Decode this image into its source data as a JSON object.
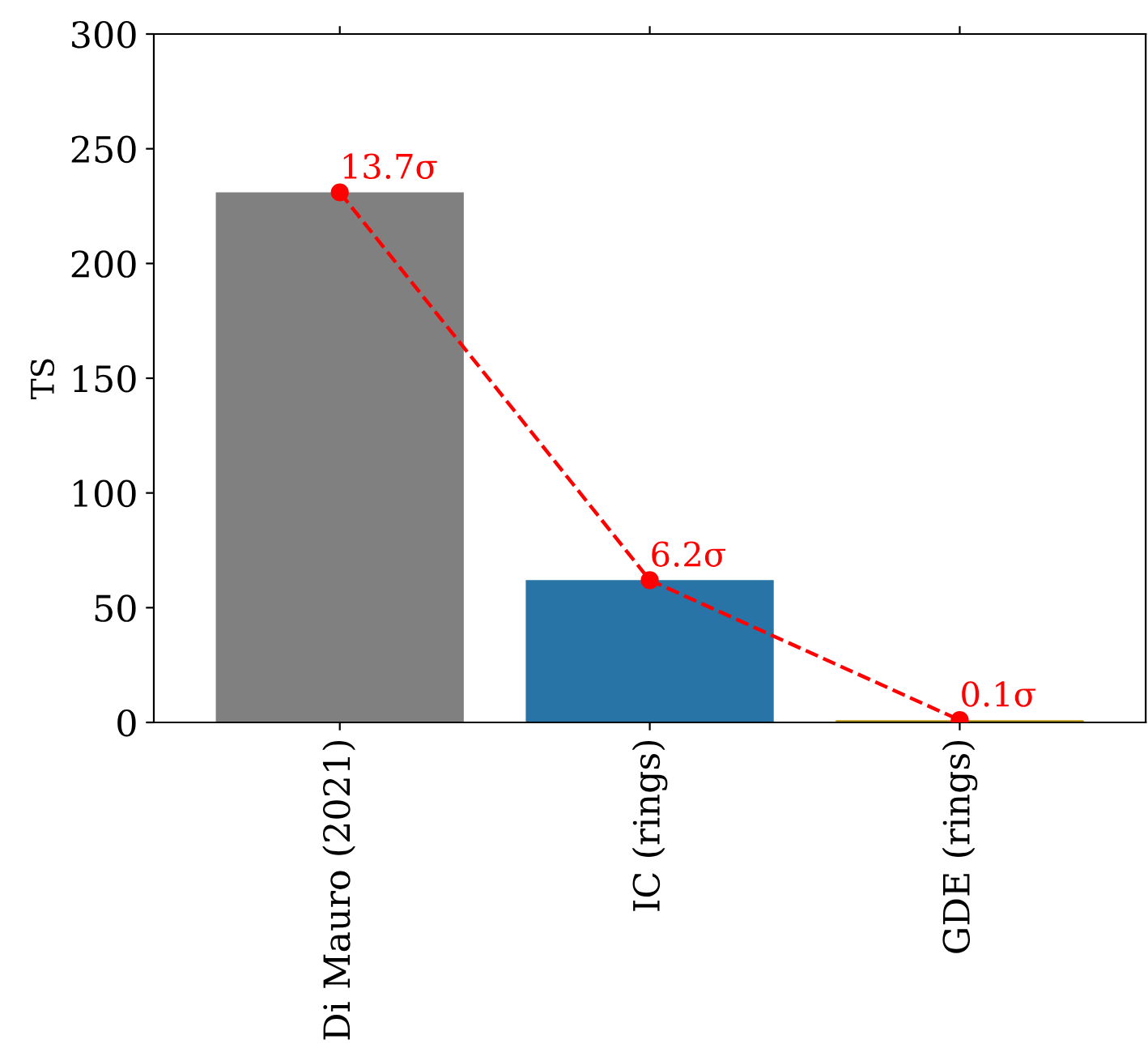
{
  "chart_data": {
    "type": "bar",
    "ylabel": "TS",
    "categories": [
      "Di Mauro (2021)",
      "IC (rings)",
      "GDE (rings)"
    ],
    "series": [
      {
        "colors": [
          "#808080",
          "#2874a6",
          "#b8960c"
        ],
        "values": [
          231,
          62,
          1
        ]
      },
      {
        "type": "line",
        "color": "#ff0000",
        "values": [
          231,
          62,
          1
        ],
        "marker": "circle",
        "line_style": "dashed"
      }
    ],
    "annotations": [
      {
        "text": "13.7σ",
        "x": "Di Mauro (2021)",
        "y": 231
      },
      {
        "text": "6.2σ",
        "x": "IC (rings)",
        "y": 62
      },
      {
        "text": "0.1σ",
        "x": "GDE (rings)",
        "y": 1
      }
    ],
    "ylim": [
      0,
      300
    ],
    "yticks": [
      0,
      50,
      100,
      150,
      200,
      250,
      300
    ],
    "grid": false,
    "legend": false
  }
}
